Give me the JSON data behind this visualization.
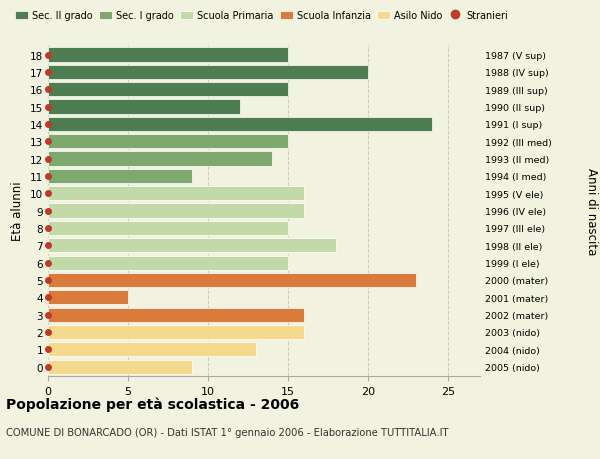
{
  "ages": [
    18,
    17,
    16,
    15,
    14,
    13,
    12,
    11,
    10,
    9,
    8,
    7,
    6,
    5,
    4,
    3,
    2,
    1,
    0
  ],
  "values": [
    15,
    20,
    15,
    12,
    24,
    15,
    14,
    9,
    16,
    16,
    15,
    18,
    15,
    23,
    5,
    16,
    16,
    13,
    9
  ],
  "right_labels": [
    "1987 (V sup)",
    "1988 (IV sup)",
    "1989 (III sup)",
    "1990 (II sup)",
    "1991 (I sup)",
    "1992 (III med)",
    "1993 (II med)",
    "1994 (I med)",
    "1995 (V ele)",
    "1996 (IV ele)",
    "1997 (III ele)",
    "1998 (II ele)",
    "1999 (I ele)",
    "2000 (mater)",
    "2001 (mater)",
    "2002 (mater)",
    "2003 (nido)",
    "2004 (nido)",
    "2005 (nido)"
  ],
  "bar_colors": [
    "#4e7d52",
    "#4e7d52",
    "#4e7d52",
    "#4e7d52",
    "#4e7d52",
    "#7da86e",
    "#7da86e",
    "#7da86e",
    "#c2d9a8",
    "#c2d9a8",
    "#c2d9a8",
    "#c2d9a8",
    "#c2d9a8",
    "#d97b3a",
    "#d97b3a",
    "#d97b3a",
    "#f5d98c",
    "#f5d98c",
    "#f5d98c"
  ],
  "legend_labels": [
    "Sec. II grado",
    "Sec. I grado",
    "Scuola Primaria",
    "Scuola Infanzia",
    "Asilo Nido",
    "Stranieri"
  ],
  "legend_colors": [
    "#4e7d52",
    "#7da86e",
    "#c2d9a8",
    "#d97b3a",
    "#f5d98c",
    "#c0392b"
  ],
  "ylabel": "Età alunni",
  "right_ylabel": "Anni di nascita",
  "title": "Popolazione per età scolastica - 2006",
  "subtitle": "COMUNE DI BONARCADO (OR) - Dati ISTAT 1° gennaio 2006 - Elaborazione TUTTITALIA.IT",
  "xlim": [
    0,
    27
  ],
  "bg_color": "#f2f2e0",
  "bar_height": 0.82,
  "dot_color": "#c0392b",
  "grid_color": "#ccccb0",
  "spine_color": "#aaaaaa"
}
